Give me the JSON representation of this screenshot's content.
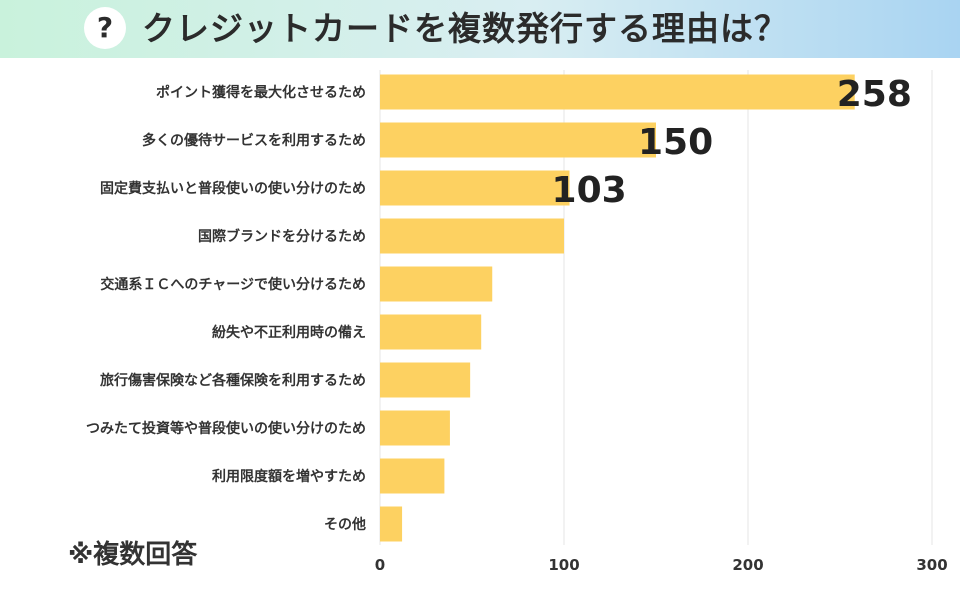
{
  "title": "クレジットカードを複数発行する理由は？",
  "header_icon": "question-mark-icon",
  "header_icon_glyph": "?",
  "note": "※複数回答",
  "colors": {
    "bar": "#fdd161",
    "grid": "#e6e6e6",
    "text": "#333333",
    "header_start": "#c9f2dc",
    "header_end": "#a9d4f2"
  },
  "chart_data": {
    "type": "bar",
    "orientation": "horizontal",
    "categories": [
      "ポイント獲得を最大化させるため",
      "多くの優待サービスを利用するため",
      "固定費支払いと普段使いの使い分けのため",
      "国際ブランドを分けるため",
      "交通系ＩＣへのチャージで使い分けるため",
      "紛失や不正利用時の備え",
      "旅行傷害保険など各種保険を利用するため",
      "つみたて投資等や普段使いの使い分けのため",
      "利用限度額を増やすため",
      "その他"
    ],
    "values": [
      258,
      150,
      103,
      100,
      61,
      55,
      49,
      38,
      35,
      12
    ],
    "data_labels": [
      "258",
      "150",
      "103",
      "",
      "",
      "",
      "",
      "",
      "",
      ""
    ],
    "xlim": [
      0,
      300
    ],
    "x_ticks": [
      0,
      100,
      200,
      300
    ],
    "x_tick_labels": [
      "0",
      "100",
      "200",
      "300"
    ],
    "grid": true,
    "legend": "none",
    "title": "クレジットカードを複数発行する理由は？"
  }
}
